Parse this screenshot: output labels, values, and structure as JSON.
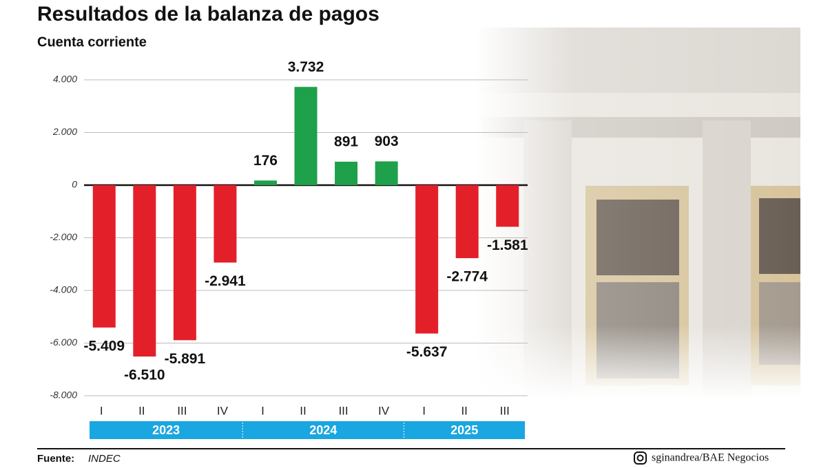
{
  "chart_data": {
    "type": "bar",
    "title": "Resultados de la balanza de pagos",
    "subtitle": "Cuenta corriente",
    "categories": [
      "I",
      "II",
      "III",
      "IV",
      "I",
      "II",
      "III",
      "IV",
      "I",
      "II",
      "III"
    ],
    "groups": [
      "2023",
      "2024",
      "2025"
    ],
    "values": [
      -5409,
      -6510,
      -5891,
      -2941,
      176,
      3732,
      891,
      903,
      -5637,
      -2774,
      -1581
    ],
    "value_labels": [
      "-5.409",
      "-6.510",
      "-5.891",
      "-2.941",
      "176",
      "3.732",
      "891",
      "903",
      "-5.637",
      "-2.774",
      "-1.581"
    ],
    "positive_color": "#1fa04a",
    "negative_color": "#e3202a",
    "group_color": "#1aa6e0",
    "ylim": [
      -8000,
      4000
    ],
    "yticks": [
      {
        "value": 4000,
        "label": "4.000"
      },
      {
        "value": 2000,
        "label": "2.000"
      },
      0,
      {
        "value": -2000,
        "label": "-2.000"
      },
      {
        "value": -4000,
        "label": "-4.000"
      },
      {
        "value": -6000,
        "label": "-6.000"
      },
      {
        "value": -8000,
        "label": "-8.000"
      }
    ],
    "grid": true,
    "source_label": "Fuente:",
    "source": "INDEC",
    "credit": "sginandrea/BAE Negocios"
  }
}
